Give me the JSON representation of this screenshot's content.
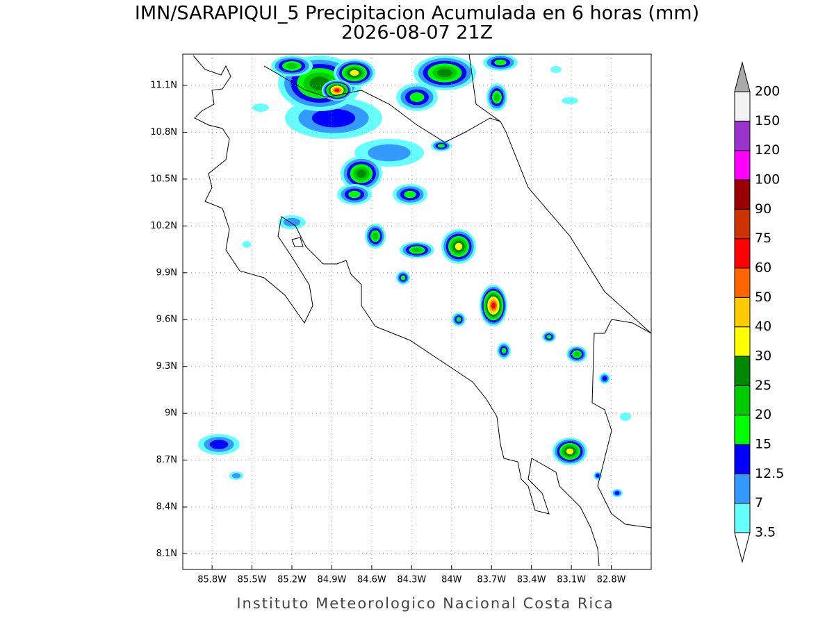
{
  "header": {
    "title": "IMN/SARAPIQUI_5 Precipitacion Acumulada en 6 horas (mm)",
    "subtitle": "2026-08-07 21Z"
  },
  "map": {
    "xlim": [
      -86.02,
      -82.5
    ],
    "ylim": [
      8.0,
      11.3
    ],
    "grid": true,
    "xticks": [
      {
        "value": -85.8,
        "label": "85.8W"
      },
      {
        "value": -85.5,
        "label": "85.5W"
      },
      {
        "value": -85.2,
        "label": "85.2W"
      },
      {
        "value": -84.9,
        "label": "84.9W"
      },
      {
        "value": -84.6,
        "label": "84.6W"
      },
      {
        "value": -84.3,
        "label": "84.3W"
      },
      {
        "value": -84.0,
        "label": "84W"
      },
      {
        "value": -83.7,
        "label": "83.7W"
      },
      {
        "value": -83.4,
        "label": "83.4W"
      },
      {
        "value": -83.1,
        "label": "83.1W"
      },
      {
        "value": -82.8,
        "label": "82.8W"
      }
    ],
    "yticks": [
      {
        "value": 8.1,
        "label": "8.1N"
      },
      {
        "value": 8.4,
        "label": "8.4N"
      },
      {
        "value": 8.7,
        "label": "8.7N"
      },
      {
        "value": 9.0,
        "label": "9N"
      },
      {
        "value": 9.3,
        "label": "9.3N"
      },
      {
        "value": 9.6,
        "label": "9.6N"
      },
      {
        "value": 9.9,
        "label": "9.9N"
      },
      {
        "value": 10.2,
        "label": "10.2N"
      },
      {
        "value": 10.5,
        "label": "10.5N"
      },
      {
        "value": 10.8,
        "label": "10.8N"
      },
      {
        "value": 11.1,
        "label": "11.1N"
      }
    ]
  },
  "colorbar": {
    "levels": [
      3.5,
      7,
      12.5,
      15,
      20,
      25,
      30,
      40,
      50,
      60,
      75,
      90,
      100,
      120,
      150,
      200
    ],
    "colors": [
      "#66ffff",
      "#3399ff",
      "#0000ff",
      "#00ff00",
      "#00cc00",
      "#008800",
      "#ffff00",
      "#ffcc00",
      "#ff6600",
      "#ff0000",
      "#cc3300",
      "#990000",
      "#ff00ff",
      "#9933cc",
      "#f2f2f2"
    ],
    "under_color": "#ffffff",
    "over_color": "#aaaaaa"
  },
  "footer": "Instituto Meteorologico Nacional Costa Rica"
}
